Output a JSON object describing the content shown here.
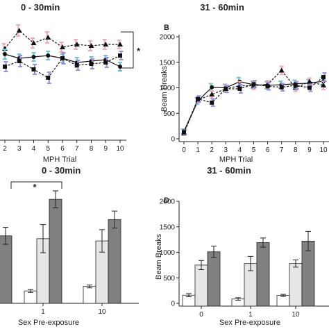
{
  "panels": {
    "A": {
      "title": "0 - 30min",
      "xlabel": "MPH Trial"
    },
    "B": {
      "label": "B",
      "title": "31 - 60min",
      "xlabel": "MPH Trial",
      "ylabel": "Beam Breaks"
    },
    "C": {
      "title": "0 - 30min",
      "xlabel": "Sex Pre-exposure"
    },
    "D": {
      "label": "D",
      "title": "31 - 60min",
      "xlabel": "Sex Pre-exposure",
      "ylabel": "Beam Breaks"
    }
  },
  "annotations": {
    "sig_a": "*",
    "sig_c": "*"
  },
  "colors": {
    "pink": "#f1a9b3",
    "blue": "#6cc5d8",
    "purple": "#9b8fe0",
    "bar_white": "#ffffff",
    "bar_light": "#e6e6e6",
    "bar_dark": "#808080"
  },
  "chart_data": [
    {
      "panel": "A",
      "type": "line",
      "x": [
        2,
        3,
        4,
        5,
        6,
        7,
        8,
        9,
        10
      ],
      "xticks": [
        "2",
        "3",
        "4",
        "5",
        "6",
        "7",
        "8",
        "9",
        "10"
      ],
      "series": [
        {
          "marker": "triangle",
          "color": "#f1a9b3",
          "dash": true,
          "values": [
            1.5,
            2.8,
            1.9,
            2.3,
            1.6,
            1.8,
            1.7,
            1.8,
            1.8
          ],
          "err": [
            0.35,
            0.4,
            0.35,
            0.4,
            0.35,
            0.35,
            0.35,
            0.35,
            0.3
          ]
        },
        {
          "marker": "circle",
          "color": "#6cc5d8",
          "dash": false,
          "values": [
            1.1,
            0.8,
            0.9,
            1.0,
            0.8,
            0.5,
            0.6,
            0.7,
            0.2
          ],
          "err": [
            0.35,
            0.3,
            0.3,
            0.3,
            0.3,
            0.35,
            0.3,
            0.3,
            0.3
          ]
        },
        {
          "marker": "square",
          "color": "#9b8fe0",
          "dash": true,
          "values": [
            0.2,
            0.6,
            0.0,
            -0.6,
            0.8,
            0.3,
            0.4,
            0.5,
            1.0
          ],
          "err": [
            0.35,
            0.4,
            0.35,
            0.4,
            0.4,
            0.35,
            0.35,
            0.35,
            0.3
          ]
        }
      ]
    },
    {
      "panel": "B",
      "type": "line",
      "x": [
        0,
        1,
        2,
        3,
        4,
        5,
        6,
        7,
        8,
        9,
        10
      ],
      "xticks": [
        "0",
        "1",
        "2",
        "3",
        "4",
        "5",
        "6",
        "7",
        "8",
        "9",
        "10"
      ],
      "ylim": [
        0,
        2000
      ],
      "yticks": [
        0,
        500,
        1000,
        1500,
        2000
      ],
      "series": [
        {
          "marker": "circle",
          "color": "#6cc5d8",
          "dash": false,
          "values": [
            150,
            740,
            1010,
            1000,
            1120,
            1060,
            1050,
            1060,
            1080,
            1090,
            1130
          ],
          "err": [
            40,
            60,
            70,
            70,
            80,
            70,
            70,
            70,
            70,
            70,
            80
          ]
        },
        {
          "marker": "triangle",
          "color": "#f1a9b3",
          "dash": true,
          "values": [
            110,
            760,
            870,
            980,
            1040,
            1040,
            1070,
            1340,
            1000,
            1120,
            1050
          ],
          "err": [
            40,
            60,
            70,
            70,
            80,
            70,
            70,
            80,
            70,
            70,
            80
          ]
        },
        {
          "marker": "square",
          "color": "#9b8fe0",
          "dash": true,
          "values": [
            130,
            780,
            710,
            980,
            980,
            1070,
            1030,
            1010,
            1050,
            1000,
            1210
          ],
          "err": [
            40,
            60,
            70,
            70,
            80,
            70,
            70,
            70,
            70,
            70,
            80
          ]
        }
      ]
    },
    {
      "panel": "C",
      "type": "bar",
      "categories": [
        "",
        "1",
        "10"
      ],
      "series": [
        {
          "color": "#ffffff",
          "values": [
            null,
            220,
            300
          ],
          "err": [
            null,
            25,
            25
          ]
        },
        {
          "color": "#e6e6e6",
          "values": [
            1100,
            1150,
            1110
          ],
          "err": [
            null,
            250,
            200
          ]
        },
        {
          "color": "#808080",
          "values": [
            1200,
            1850,
            1490
          ],
          "err": [
            150,
            150,
            150
          ]
        }
      ]
    },
    {
      "panel": "D",
      "type": "bar",
      "categories": [
        "0",
        "1",
        "10"
      ],
      "ylim": [
        0,
        2000
      ],
      "yticks": [
        0,
        500,
        1000,
        1500,
        2000
      ],
      "series": [
        {
          "color": "#ffffff",
          "values": [
            160,
            85,
            155
          ],
          "err": [
            30,
            25,
            20
          ]
        },
        {
          "color": "#e6e6e6",
          "values": [
            750,
            780,
            780
          ],
          "err": [
            90,
            140,
            70
          ]
        },
        {
          "color": "#808080",
          "values": [
            1010,
            1190,
            1220
          ],
          "err": [
            110,
            90,
            190
          ]
        }
      ]
    }
  ]
}
